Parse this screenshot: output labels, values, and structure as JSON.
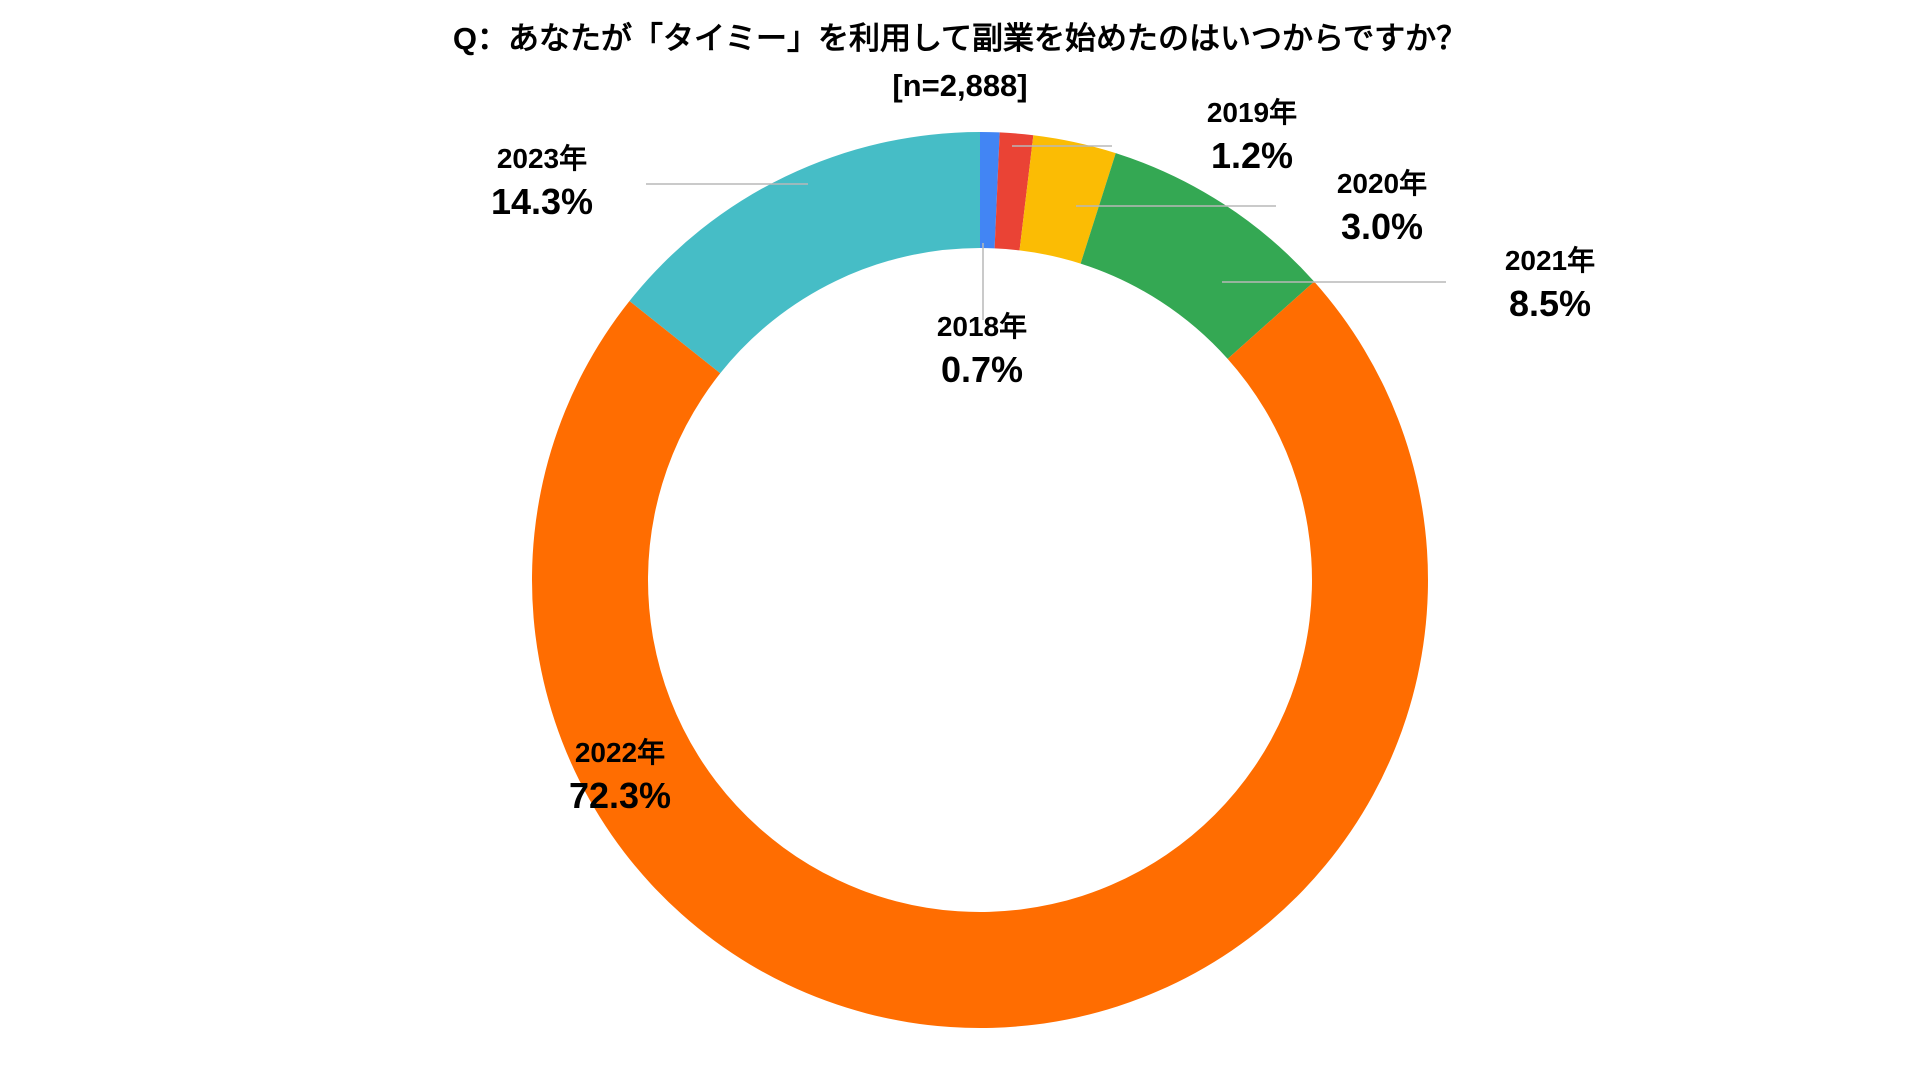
{
  "chart_data": {
    "type": "pie",
    "variant": "donut",
    "title": "Q：あなたが「タイミー」を利用して副業を始めたのはいつからですか？",
    "subtitle": "[n=2,888]",
    "legend": "none",
    "slices": [
      {
        "category": "2018年",
        "value": 0.7,
        "label": "0.7%",
        "color": "#4285f4"
      },
      {
        "category": "2019年",
        "value": 1.2,
        "label": "1.2%",
        "color": "#ea4335"
      },
      {
        "category": "2020年",
        "value": 3.0,
        "label": "3.0%",
        "color": "#fbbc04"
      },
      {
        "category": "2021年",
        "value": 8.5,
        "label": "8.5%",
        "color": "#34a853"
      },
      {
        "category": "2022年",
        "value": 72.3,
        "label": "72.3%",
        "color": "#ff6d01"
      },
      {
        "category": "2023年",
        "value": 14.3,
        "label": "14.3%",
        "color": "#46bdc6"
      }
    ]
  }
}
